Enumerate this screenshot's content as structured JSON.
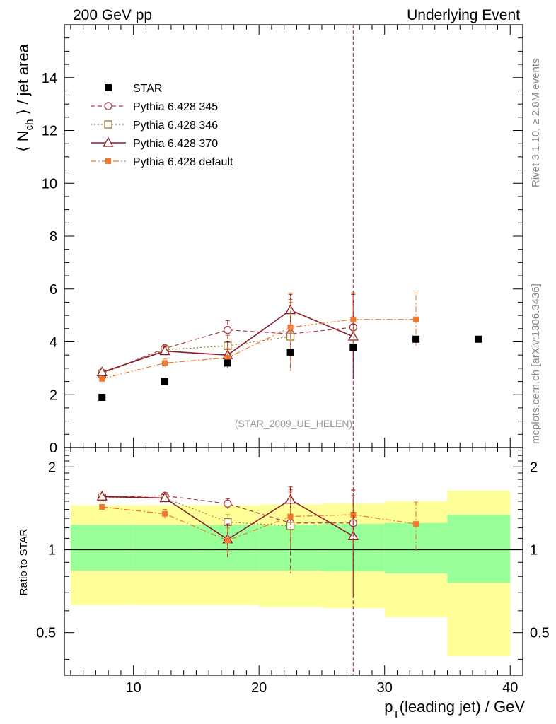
{
  "header": {
    "left": "200 GeV pp",
    "right": "Underlying Event"
  },
  "side_labels": {
    "rivet": "Rivet 3.1.10, ≥ 2.8M events",
    "mcplots": "mcplots.cern.ch [arXiv:1306.3436]"
  },
  "analysis_tag": "(STAR_2009_UE_HELEN)",
  "colors": {
    "star": "#000000",
    "py345": "#b03a48",
    "py346": "#a07828",
    "py370": "#8b1a2b",
    "pydefault": "#f07830",
    "band_yellow": "#ffff99",
    "band_green": "#99ff99",
    "vline": "#b03a60"
  },
  "chart_data": [
    {
      "type": "scatter",
      "panel": "main",
      "ylabel": "⟨ N_ch ⟩ / jet area",
      "ylabel_main": "⟨ N",
      "ylabel_sub": "ch",
      "ylabel_tail": " ⟩ / jet area",
      "xlim": [
        4.5,
        41
      ],
      "ylim": [
        0,
        16
      ],
      "yticks": [
        0,
        2,
        4,
        6,
        8,
        10,
        12,
        14
      ],
      "ytick_labels": [
        "0",
        "2",
        "4",
        "6",
        "8",
        "10",
        "12",
        "14"
      ],
      "legend_position": "top-left",
      "series": [
        {
          "name": "STAR",
          "key": "star",
          "style": "data",
          "x": [
            7.5,
            12.5,
            17.5,
            22.5,
            27.5,
            32.5,
            37.5
          ],
          "y": [
            1.9,
            2.5,
            3.2,
            3.6,
            3.8,
            4.1,
            4.1
          ]
        },
        {
          "name": "Pythia 6.428 345",
          "key": "py345",
          "style": "circle-dashed",
          "x": [
            7.5,
            12.5,
            17.5,
            22.5,
            27.5
          ],
          "y": [
            2.8,
            3.75,
            4.45,
            4.3,
            4.55
          ],
          "err": [
            0.1,
            0.15,
            0.35,
            1.3,
            1.3
          ]
        },
        {
          "name": "Pythia 6.428 346",
          "key": "py346",
          "style": "square-dotted",
          "x": [
            7.5,
            12.5,
            17.5,
            22.5
          ],
          "y": [
            2.8,
            3.7,
            3.85,
            4.2
          ],
          "err": [
            0.1,
            0.1,
            0.4,
            1.3
          ]
        },
        {
          "name": "Pythia 6.428 370",
          "key": "py370",
          "style": "triangle-solid",
          "x": [
            7.5,
            12.5,
            17.5,
            22.5,
            27.5
          ],
          "y": [
            2.85,
            3.65,
            3.5,
            5.2,
            4.2
          ],
          "err": [
            0.1,
            0.15,
            0.5,
            0.6,
            1.6
          ]
        },
        {
          "name": "Pythia 6.428 default",
          "key": "pydefault",
          "style": "filledsquare-dashdot",
          "x": [
            7.5,
            12.5,
            17.5,
            22.5,
            27.5,
            32.5
          ],
          "y": [
            2.6,
            3.2,
            3.4,
            4.55,
            4.85,
            4.85
          ],
          "err": [
            0.1,
            0.15,
            0.35,
            1.3,
            1.0,
            1.0
          ]
        }
      ]
    },
    {
      "type": "scatter",
      "panel": "ratio",
      "ylabel": "Ratio to STAR",
      "xlabel": "p_T(leading jet) / GeV",
      "xlabel_main": "p",
      "xlabel_sub": "T",
      "xlabel_tail": "(leading jet) / GeV",
      "xlim": [
        4.5,
        41
      ],
      "ylim": [
        0.35,
        2.35
      ],
      "yscale": "log",
      "yticks": [
        0.5,
        1,
        2
      ],
      "ytick_labels": [
        "0.5",
        "1",
        "2"
      ],
      "xticks": [
        10,
        20,
        30,
        40
      ],
      "xtick_labels": [
        "10",
        "20",
        "30",
        "40"
      ],
      "reference_line": 1,
      "vertical_line_x": 27.5,
      "bands": [
        {
          "xlo": 5,
          "xhi": 10,
          "yellow": [
            0.63,
            1.45
          ],
          "green": [
            0.84,
            1.23
          ]
        },
        {
          "xlo": 10,
          "xhi": 15,
          "yellow": [
            0.63,
            1.45
          ],
          "green": [
            0.84,
            1.23
          ]
        },
        {
          "xlo": 15,
          "xhi": 20,
          "yellow": [
            0.63,
            1.45
          ],
          "green": [
            0.84,
            1.23
          ]
        },
        {
          "xlo": 20,
          "xhi": 25,
          "yellow": [
            0.62,
            1.46
          ],
          "green": [
            0.84,
            1.23
          ]
        },
        {
          "xlo": 25,
          "xhi": 30,
          "yellow": [
            0.615,
            1.47
          ],
          "green": [
            0.835,
            1.24
          ]
        },
        {
          "xlo": 30,
          "xhi": 35,
          "yellow": [
            0.57,
            1.5
          ],
          "green": [
            0.82,
            1.25
          ]
        },
        {
          "xlo": 35,
          "xhi": 40,
          "yellow": [
            0.41,
            1.64
          ],
          "green": [
            0.76,
            1.34
          ]
        }
      ],
      "series": [
        {
          "name": "Pythia 6.428 345",
          "key": "py345",
          "style": "circle-dashed",
          "x": [
            7.5,
            12.5,
            17.5,
            22.5,
            27.5
          ],
          "y": [
            1.55,
            1.57,
            1.47,
            1.25,
            1.25
          ],
          "err": [
            0.03,
            0.04,
            0.06,
            0.4,
            0.4
          ]
        },
        {
          "name": "Pythia 6.428 346",
          "key": "py346",
          "style": "square-dotted",
          "x": [
            7.5,
            12.5,
            17.5,
            22.5
          ],
          "y": [
            1.55,
            1.54,
            1.26,
            1.22
          ],
          "err": [
            0.03,
            0.04,
            0.08,
            0.4
          ]
        },
        {
          "name": "Pythia 6.428 370",
          "key": "py370",
          "style": "triangle-solid",
          "x": [
            7.5,
            12.5,
            17.5,
            22.5,
            27.5
          ],
          "y": [
            1.56,
            1.54,
            1.09,
            1.52,
            1.12
          ],
          "err": [
            0.03,
            0.05,
            0.15,
            0.17,
            0.45
          ]
        },
        {
          "name": "Pythia 6.428 default",
          "key": "pydefault",
          "style": "filledsquare-dashdot",
          "x": [
            7.5,
            12.5,
            17.5,
            22.5,
            27.5,
            32.5
          ],
          "y": [
            1.43,
            1.35,
            1.08,
            1.32,
            1.34,
            1.24
          ],
          "err": [
            0.03,
            0.05,
            0.12,
            0.3,
            0.3,
            0.25
          ]
        }
      ]
    }
  ]
}
